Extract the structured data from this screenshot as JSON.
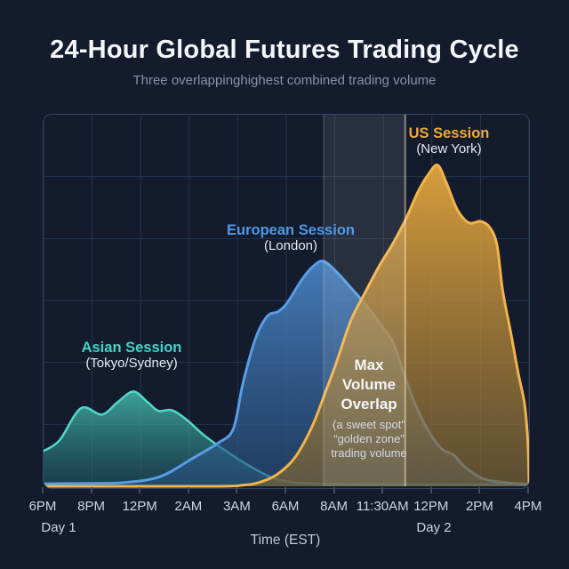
{
  "header": {
    "title": "24-Hour Global Futures Trading Cycle",
    "subtitle": "Three overlappinghighest combined trading volume"
  },
  "axis": {
    "ticks": [
      "6PM",
      "8PM",
      "12PM",
      "2AM",
      "3AM",
      "6AM",
      "8AM",
      "11:30AM",
      "12PM",
      "2PM",
      "4PM"
    ],
    "day1_label": "Day 1",
    "day2_label": "Day 2",
    "x_axis_title": "Time (EST)"
  },
  "annotations": {
    "asian": {
      "title": "Asian Session",
      "subtitle": "(Tokyo/Sydney)",
      "color": "#41d4c7"
    },
    "european": {
      "title": "European Session",
      "subtitle": "(London)",
      "color": "#4f9ae6"
    },
    "us": {
      "title": "US Session",
      "subtitle": "(New York)",
      "color": "#ecaa3e"
    },
    "overlap": {
      "title_lines": [
        "Max",
        "Volume",
        "Overlap"
      ],
      "sub_lines": [
        "(a sweet spot\"",
        "“golden zone”",
        "trading volume"
      ]
    }
  },
  "colors": {
    "background": "#131b2d",
    "panel_border": "#33455f",
    "grid": "#24364e",
    "band_fill": "#ffffff",
    "band_edge": "#ffe9c4"
  },
  "chart_data": {
    "type": "area",
    "title": "24-Hour Global Futures Trading Cycle",
    "xlabel": "Time (EST)",
    "ylabel": "",
    "x_unit": "tick index 0-10 over ticks list",
    "y_unit": "relative trading volume, percent of chart max",
    "ylim": [
      0,
      100
    ],
    "grid": true,
    "legend_position": "inline-labels",
    "x_ticks": [
      "6PM Day 1",
      "8PM",
      "12PM",
      "2AM",
      "3AM",
      "6AM",
      "8AM",
      "11:30AM",
      "12PM Day 2",
      "2PM",
      "4PM"
    ],
    "overlap_band": {
      "from_tick": 5.77,
      "to_tick": 7.45,
      "label": "Max Volume Overlap (a sweet spot\" “golden zone” trading volume"
    },
    "series": [
      {
        "name": "Asian Session (Tokyo/Sydney)",
        "style": {
          "line": "#50d8cb",
          "fill_top": "#49c2b8",
          "fill_bottom": "#1d5e68",
          "top_alpha": 0.8,
          "bottom_alpha": 0.5,
          "line_width": 2.5
        },
        "points": [
          [
            0,
            9.5
          ],
          [
            0.33,
            12.4
          ],
          [
            0.77,
            21
          ],
          [
            1.2,
            19.3
          ],
          [
            1.53,
            22.7
          ],
          [
            1.85,
            25.5
          ],
          [
            2.14,
            22.7
          ],
          [
            2.36,
            20.3
          ],
          [
            2.64,
            20.5
          ],
          [
            2.95,
            17.9
          ],
          [
            3.32,
            13.6
          ],
          [
            3.78,
            9.3
          ],
          [
            4.24,
            5.5
          ],
          [
            4.7,
            2.4
          ],
          [
            5.17,
            1
          ],
          [
            5.9,
            0.6
          ],
          [
            7,
            0.5
          ],
          [
            10,
            0.5
          ]
        ]
      },
      {
        "name": "European Session (London)",
        "style": {
          "line": "#569de6",
          "fill_top": "#4a86c8",
          "fill_bottom": "#27507e",
          "top_alpha": 0.9,
          "bottom_alpha": 0.62,
          "line_width": 3
        },
        "points": [
          [
            0,
            0.7
          ],
          [
            1,
            0.8
          ],
          [
            1.66,
            1
          ],
          [
            2.4,
            2.6
          ],
          [
            3.08,
            7.6
          ],
          [
            3.6,
            11.7
          ],
          [
            3.91,
            15.5
          ],
          [
            4.11,
            27.9
          ],
          [
            4.37,
            39.9
          ],
          [
            4.61,
            45.8
          ],
          [
            4.83,
            47
          ],
          [
            5.02,
            49.4
          ],
          [
            5.31,
            55.4
          ],
          [
            5.53,
            58.9
          ],
          [
            5.76,
            60.6
          ],
          [
            6.05,
            57.5
          ],
          [
            6.36,
            53
          ],
          [
            6.68,
            48.2
          ],
          [
            6.97,
            43
          ],
          [
            7.2,
            38.7
          ],
          [
            7.42,
            30.3
          ],
          [
            7.66,
            22
          ],
          [
            7.93,
            14.8
          ],
          [
            8.21,
            10
          ],
          [
            8.45,
            8.4
          ],
          [
            8.67,
            5.3
          ],
          [
            9.04,
            2.1
          ],
          [
            9.5,
            1
          ],
          [
            10,
            0.6
          ]
        ]
      },
      {
        "name": "US Session (New York)",
        "style": {
          "line": "#f2b34c",
          "fill_top": "#e2a43c",
          "fill_bottom": "#7d6434",
          "top_alpha": 0.95,
          "bottom_alpha": 0.68,
          "line_width": 3
        },
        "points": [
          [
            0,
            0
          ],
          [
            3.5,
            0
          ],
          [
            4.1,
            0.3
          ],
          [
            4.43,
            1
          ],
          [
            4.8,
            3.1
          ],
          [
            5.17,
            7.6
          ],
          [
            5.53,
            16
          ],
          [
            5.81,
            25.5
          ],
          [
            6.03,
            33.2
          ],
          [
            6.33,
            44.6
          ],
          [
            6.64,
            52.5
          ],
          [
            6.92,
            59.4
          ],
          [
            7.2,
            65.4
          ],
          [
            7.47,
            72.1
          ],
          [
            7.71,
            79.2
          ],
          [
            7.93,
            84
          ],
          [
            8.12,
            86.4
          ],
          [
            8.3,
            81.6
          ],
          [
            8.52,
            74.5
          ],
          [
            8.76,
            70.9
          ],
          [
            9,
            71.3
          ],
          [
            9.19,
            69.7
          ],
          [
            9.34,
            64.9
          ],
          [
            9.46,
            52.5
          ],
          [
            9.63,
            41
          ],
          [
            9.78,
            30.3
          ],
          [
            9.91,
            22
          ],
          [
            9.98,
            11
          ],
          [
            10,
            1
          ]
        ]
      }
    ]
  }
}
